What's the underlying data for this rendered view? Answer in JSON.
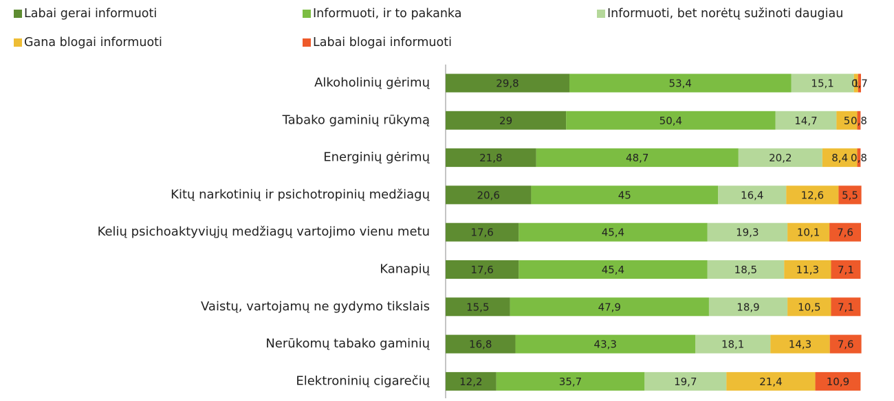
{
  "chart_data": {
    "type": "stacked_bar_horizontal",
    "categories": [
      "Alkoholinių gėrimų",
      "Tabako gaminių rūkymą",
      "Energinių gėrimų",
      "Kitų narkotinių ir psichotropinių medžiagų",
      "Kelių psichoaktyviųjų medžiagų vartojimo vienu metu",
      "Kanapių",
      "Vaistų, vartojamų ne gydymo tikslais",
      "Nerūkomų tabako gaminių",
      "Elektroninių cigarečių"
    ],
    "xlim": [
      0,
      100
    ],
    "legend": "top",
    "series": [
      {
        "name": "Labai gerai informuoti",
        "color": "#5e8c31",
        "values": [
          29.8,
          29,
          21.8,
          20.6,
          17.6,
          17.6,
          15.5,
          16.8,
          12.2
        ],
        "value_labels": [
          "29,8",
          "29",
          "21,8",
          "20,6",
          "17,6",
          "17,6",
          "15,5",
          "16,8",
          "12,2"
        ]
      },
      {
        "name": "Informuoti, ir to pakanka",
        "color": "#7cbd42",
        "values": [
          53.4,
          50.4,
          48.7,
          45,
          45.4,
          45.4,
          47.9,
          43.3,
          35.7
        ],
        "value_labels": [
          "53,4",
          "50,4",
          "48,7",
          "45",
          "45,4",
          "45,4",
          "47,9",
          "43,3",
          "35,7"
        ]
      },
      {
        "name": "Informuoti, bet norėtų sužinoti daugiau",
        "color": "#b5d89a",
        "values": [
          15.1,
          14.7,
          20.2,
          16.4,
          19.3,
          18.5,
          18.9,
          18.1,
          19.7
        ],
        "value_labels": [
          "15,1",
          "14,7",
          "20,2",
          "16,4",
          "19,3",
          "18,5",
          "18,9",
          "18,1",
          "19,7"
        ]
      },
      {
        "name": "Gana blogai informuoti",
        "color": "#eebd35",
        "values": [
          1,
          5,
          8.4,
          12.6,
          10.1,
          11.3,
          10.5,
          14.3,
          21.4
        ],
        "value_labels": [
          "1",
          "5",
          "8,4",
          "12,6",
          "10,1",
          "11,3",
          "10,5",
          "14,3",
          "21,4"
        ]
      },
      {
        "name": "Labai blogai informuoti",
        "color": "#ee5a2a",
        "values": [
          0.7,
          0.8,
          0.8,
          5.5,
          7.6,
          7.1,
          7.1,
          7.6,
          10.9
        ],
        "value_labels": [
          "0,7",
          "0,8",
          "0,8",
          "5,5",
          "7,6",
          "7,1",
          "7,1",
          "7,6",
          "10,9"
        ]
      }
    ]
  }
}
